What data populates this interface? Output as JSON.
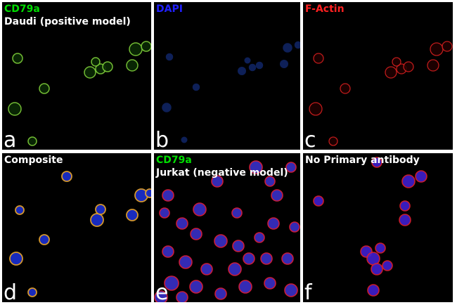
{
  "panels": [
    {
      "letter": "a",
      "label1": "CD79a",
      "label1_color": "#00dd00",
      "label2": "Daudi (positive model)",
      "channel": "green"
    },
    {
      "letter": "b",
      "label1": "DAPI",
      "label1_color": "#2020ff",
      "label2": "",
      "channel": "blue"
    },
    {
      "letter": "c",
      "label1": "F-Actin",
      "label1_color": "#ff2020",
      "label2": "",
      "channel": "red"
    },
    {
      "letter": "d",
      "label1": "Composite",
      "label1_color": "#ffffff",
      "label2": "",
      "channel": "composite"
    },
    {
      "letter": "e",
      "label1": "CD79a",
      "label1_color": "#00dd00",
      "label2": "Jurkat (negative model)",
      "channel": "jurkat"
    },
    {
      "letter": "f",
      "label1": "No Primary antibody",
      "label1_color": "#ffffff",
      "label2": "",
      "channel": "noprimary"
    }
  ]
}
